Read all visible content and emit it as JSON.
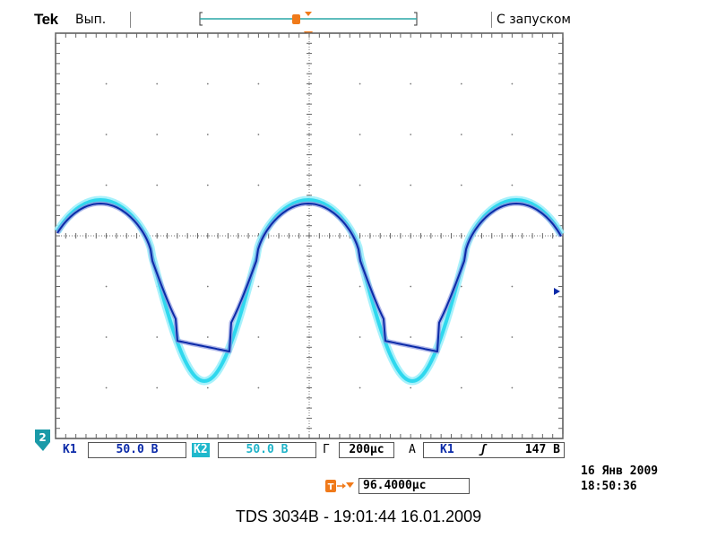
{
  "header": {
    "brand": "Tek",
    "acq_state": "Вып.",
    "trigger_mode": "С запуском",
    "trigger_marker": "T"
  },
  "channels": {
    "ch1": {
      "label": "К1",
      "scale": "50.0 В",
      "color": "#0b2aa8"
    },
    "ch2": {
      "label": "К2",
      "scale": "50.0 В",
      "color": "#2fd8ee"
    },
    "ground_marker": "2"
  },
  "timebase": {
    "label": "Г",
    "value": "200μс"
  },
  "trigger": {
    "label": "А",
    "source": "К1",
    "slope": "ʃ",
    "level": "147 В"
  },
  "delay": {
    "value": "96.4000μс"
  },
  "datetime": {
    "date": "16 Янв 2009",
    "time": "18:50:36"
  },
  "footer": {
    "caption": "TDS 3034B - 19:01:44   16.01.2009"
  },
  "colors": {
    "grid_bg": "#ffffff",
    "grid_dot": "#777777",
    "axis": "#555555",
    "trigger_orange": "#f07a1a"
  }
}
